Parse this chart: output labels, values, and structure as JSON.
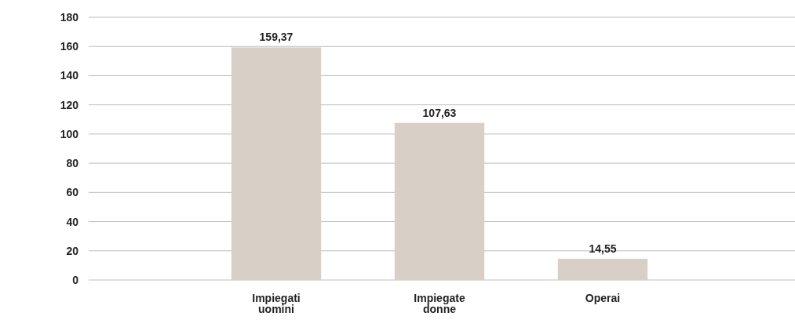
{
  "chart_data": {
    "type": "bar",
    "categories": [
      "Impiegati uomini",
      "Impiegate donne",
      "Operai"
    ],
    "values": [
      159.37,
      107.63,
      14.55
    ],
    "value_labels": [
      "159,37",
      "107,63",
      "14,55"
    ],
    "color": "#d8cfc6",
    "ylim": [
      0,
      180
    ],
    "yticks": [
      0,
      20,
      40,
      60,
      80,
      100,
      120,
      140,
      160,
      180
    ],
    "grid": "y"
  }
}
